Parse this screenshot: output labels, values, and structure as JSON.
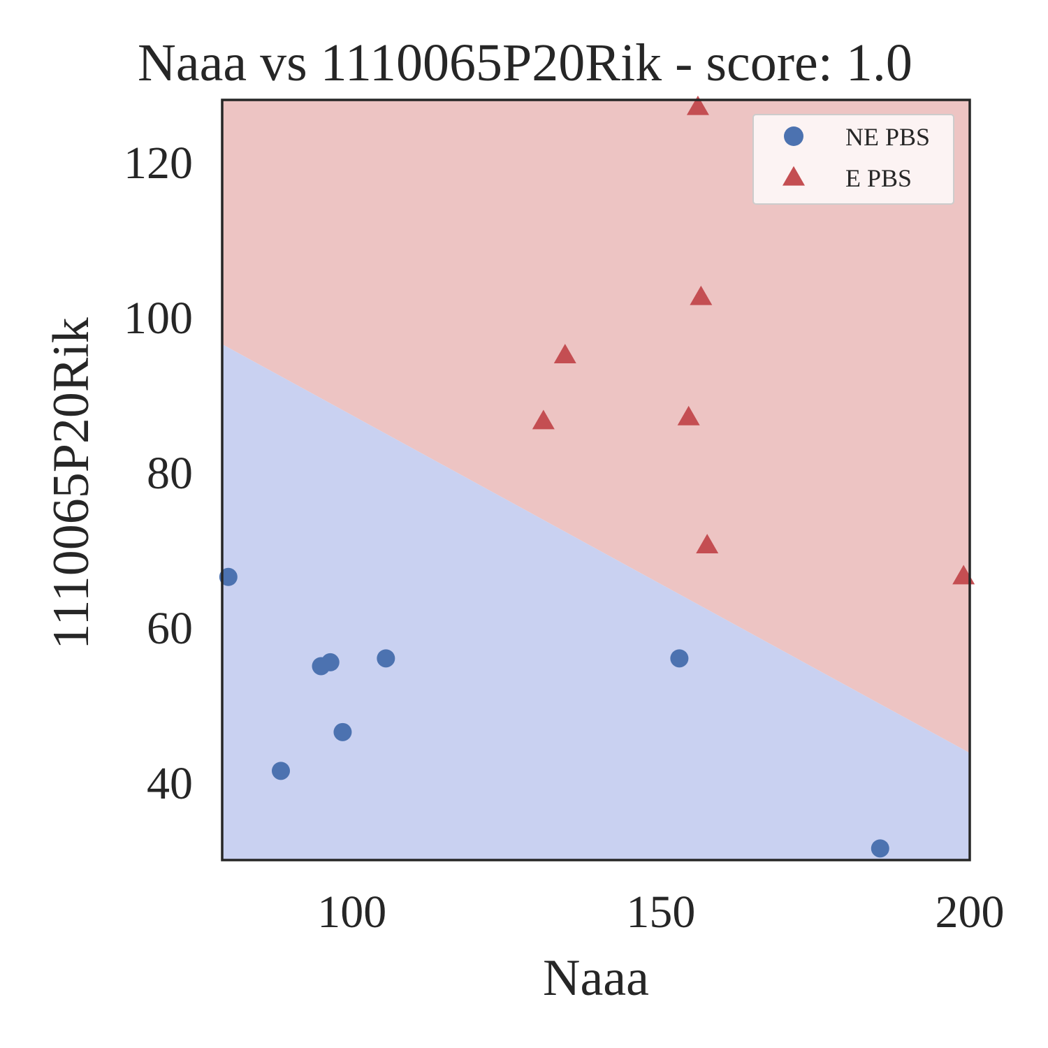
{
  "chart_data": {
    "type": "scatter",
    "title": "Naaa vs 1110065P20Rik - score: 1.0",
    "xlabel": "Naaa",
    "ylabel": "1110065P20Rik",
    "xlim": [
      79,
      200
    ],
    "ylim": [
      30,
      128
    ],
    "xticks": [
      100,
      150,
      200
    ],
    "yticks": [
      40,
      60,
      80,
      100,
      120
    ],
    "grid": false,
    "legend_position": "top-right",
    "background_color": "#ffffff",
    "decision_boundary": {
      "line": [
        [
          79,
          96.5
        ],
        [
          200,
          43.8
        ]
      ],
      "region_above_color": "#edc4c3",
      "region_below_color": "#c9d1f1",
      "above_class": "E PBS",
      "below_class": "NE PBS"
    },
    "series": [
      {
        "name": "NE PBS",
        "marker": "circle",
        "color": "#4c72b0",
        "points": [
          [
            80,
            66.5
          ],
          [
            88.5,
            41.5
          ],
          [
            95,
            55
          ],
          [
            96.5,
            55.5
          ],
          [
            98.5,
            46.5
          ],
          [
            105.5,
            56
          ],
          [
            153,
            56
          ],
          [
            185.5,
            31.5
          ]
        ]
      },
      {
        "name": "E PBS",
        "marker": "triangle",
        "color": "#c44e52",
        "points": [
          [
            131,
            86.5
          ],
          [
            134.5,
            95
          ],
          [
            154.5,
            87
          ],
          [
            156,
            127
          ],
          [
            156.5,
            102.5
          ],
          [
            157.5,
            70.5
          ],
          [
            199,
            66.5
          ]
        ]
      }
    ]
  }
}
